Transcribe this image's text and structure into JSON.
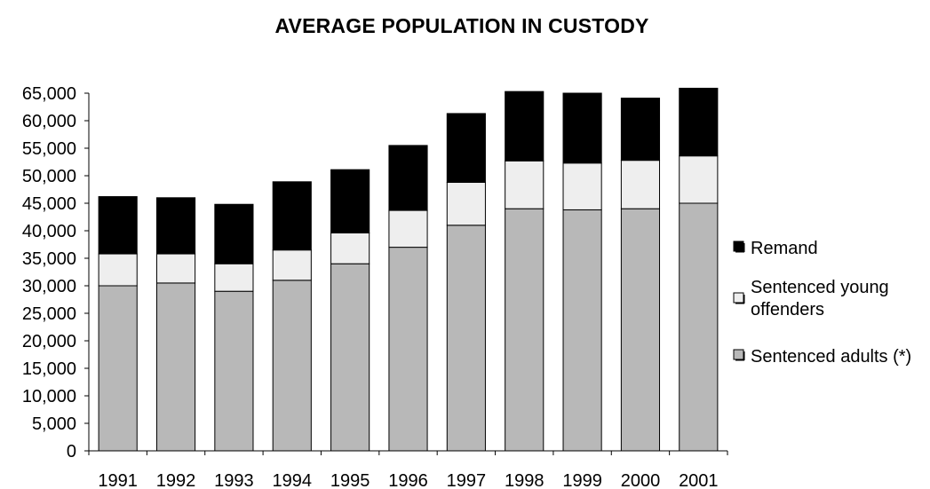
{
  "chart_data": {
    "type": "bar",
    "stacked": true,
    "title": "AVERAGE POPULATION IN CUSTODY",
    "xlabel": "",
    "ylabel": "",
    "categories": [
      "1991",
      "1992",
      "1993",
      "1994",
      "1995",
      "1996",
      "1997",
      "1998",
      "1999",
      "2000",
      "2001"
    ],
    "ylim": [
      0,
      65000
    ],
    "yticks": [
      0,
      5000,
      10000,
      15000,
      20000,
      25000,
      30000,
      35000,
      40000,
      45000,
      50000,
      55000,
      60000,
      65000
    ],
    "ytick_labels": [
      "0",
      "5,000",
      "10,000",
      "15,000",
      "20,000",
      "25,000",
      "30,000",
      "35,000",
      "40,000",
      "45,000",
      "50,000",
      "55,000",
      "60,000",
      "65,000"
    ],
    "grid": false,
    "legend_position": "right",
    "series": [
      {
        "name": "Sentenced adults (*)",
        "color": "#b8b8b8",
        "values": [
          30000,
          30500,
          29000,
          31000,
          34000,
          37000,
          41000,
          44000,
          43800,
          44000,
          45000
        ]
      },
      {
        "name": "Sentenced young offenders",
        "color": "#eeeeee",
        "values": [
          5800,
          5300,
          5000,
          5500,
          5600,
          6700,
          7800,
          8700,
          8500,
          8800,
          8600
        ]
      },
      {
        "name": "Remand",
        "color": "#000000",
        "values": [
          10400,
          10200,
          10800,
          12400,
          11500,
          11800,
          12500,
          12600,
          12700,
          11300,
          12300
        ]
      }
    ],
    "legend": [
      {
        "name": "Remand",
        "color": "#000000"
      },
      {
        "name": "Sentenced young offenders",
        "color": "#eeeeee"
      },
      {
        "name": "Sentenced adults (*)",
        "color": "#b8b8b8"
      }
    ]
  }
}
